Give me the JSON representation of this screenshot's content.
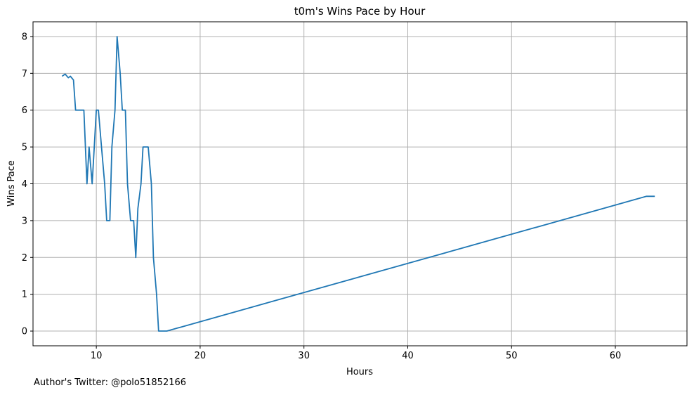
{
  "chart_data": {
    "type": "line",
    "title": "t0m's Wins Pace by Hour",
    "xlabel": "Hours",
    "ylabel": "Wins Pace",
    "xlim": [
      3.9,
      66.9
    ],
    "ylim": [
      -0.4,
      8.4
    ],
    "xticks": [
      10,
      20,
      30,
      40,
      50,
      60
    ],
    "xtick_labels": [
      "10",
      "20",
      "30",
      "40",
      "50",
      "60"
    ],
    "yticks": [
      0,
      1,
      2,
      3,
      4,
      5,
      6,
      7,
      8
    ],
    "ytick_labels": [
      "0",
      "1",
      "2",
      "3",
      "4",
      "5",
      "6",
      "7",
      "8"
    ],
    "grid": true,
    "line_color": "#1f77b4",
    "series": [
      {
        "x": [
          6.7,
          7.0,
          7.3,
          7.5,
          7.8,
          8.0,
          8.3,
          8.6,
          8.8,
          9.1,
          9.3,
          9.6,
          9.8,
          10.0,
          10.2,
          10.5,
          10.8,
          11.0,
          11.3,
          11.5,
          11.8,
          12.0,
          12.3,
          12.5,
          12.8,
          13.0,
          13.3,
          13.6,
          13.8,
          14.0,
          14.3,
          14.5,
          14.8,
          15.0,
          15.3,
          15.5,
          15.8,
          16.0,
          16.3,
          16.6,
          16.8,
          63.0,
          63.3,
          63.8
        ],
        "y": [
          6.92,
          6.98,
          6.88,
          6.92,
          6.82,
          6.0,
          6.0,
          6.0,
          6.0,
          4.0,
          5.0,
          4.0,
          5.0,
          6.0,
          6.0,
          5.0,
          4.0,
          3.0,
          3.0,
          5.0,
          6.0,
          8.0,
          7.0,
          6.0,
          6.0,
          4.0,
          3.0,
          3.0,
          2.0,
          3.33,
          4.0,
          5.0,
          5.0,
          5.0,
          4.0,
          2.0,
          1.0,
          0.0,
          0.0,
          0.0,
          0.0,
          3.66,
          3.66,
          3.66
        ]
      }
    ],
    "footer": "Author's Twitter: @polo51852166"
  }
}
